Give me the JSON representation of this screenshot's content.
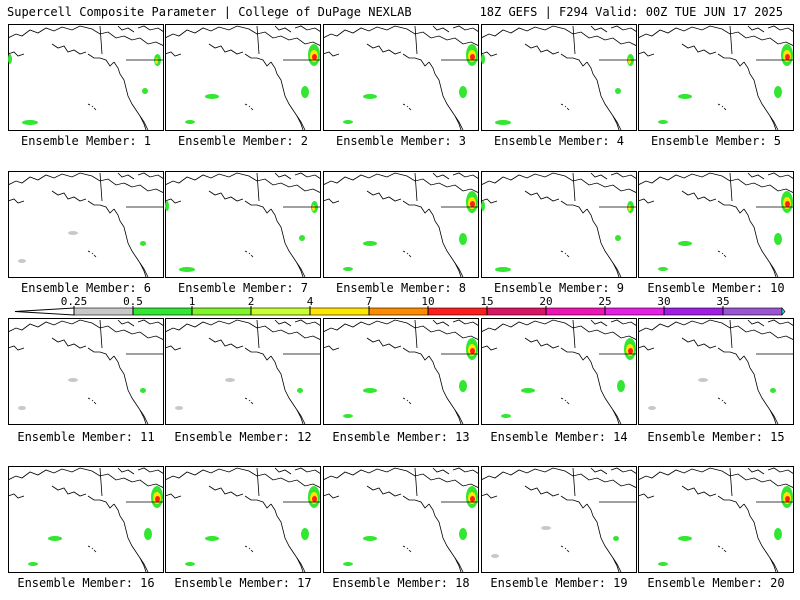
{
  "header": {
    "left_title": "Supercell Composite Parameter | College of DuPage NEXLAB",
    "right_title": "18Z GEFS | F294 Valid: 00Z TUE JUN 17 2025"
  },
  "member_label_prefix": "Ensemble Member:",
  "members": [
    {
      "number": "1",
      "intensity": "moderate"
    },
    {
      "number": "2",
      "intensity": "high"
    },
    {
      "number": "3",
      "intensity": "high"
    },
    {
      "number": "4",
      "intensity": "moderate"
    },
    {
      "number": "5",
      "intensity": "high"
    },
    {
      "number": "6",
      "intensity": "low"
    },
    {
      "number": "7",
      "intensity": "moderate"
    },
    {
      "number": "8",
      "intensity": "high"
    },
    {
      "number": "9",
      "intensity": "moderate"
    },
    {
      "number": "10",
      "intensity": "high"
    },
    {
      "number": "11",
      "intensity": "low"
    },
    {
      "number": "12",
      "intensity": "low"
    },
    {
      "number": "13",
      "intensity": "high"
    },
    {
      "number": "14",
      "intensity": "high"
    },
    {
      "number": "15",
      "intensity": "low"
    },
    {
      "number": "16",
      "intensity": "high"
    },
    {
      "number": "17",
      "intensity": "high"
    },
    {
      "number": "18",
      "intensity": "high"
    },
    {
      "number": "19",
      "intensity": "low"
    },
    {
      "number": "20",
      "intensity": "high"
    }
  ],
  "colorbar": {
    "labels": [
      "0.25",
      "0.5",
      "1",
      "2",
      "4",
      "7",
      "10",
      "15",
      "20",
      "25",
      "30",
      "35"
    ],
    "colors": [
      "#c8c8c8",
      "#32e632",
      "#7ff52a",
      "#c8ff32",
      "#ffe600",
      "#ff8c00",
      "#ff1e1e",
      "#dc1464",
      "#f014b4",
      "#e61ee6",
      "#a01ee6",
      "#9b55d2",
      "#28e6e6"
    ]
  },
  "map_colors": {
    "land_line": "#000000",
    "low": "#c8c8c8",
    "mid": "#32e632",
    "high": "#ffe600",
    "top": "#ff1e1e"
  }
}
